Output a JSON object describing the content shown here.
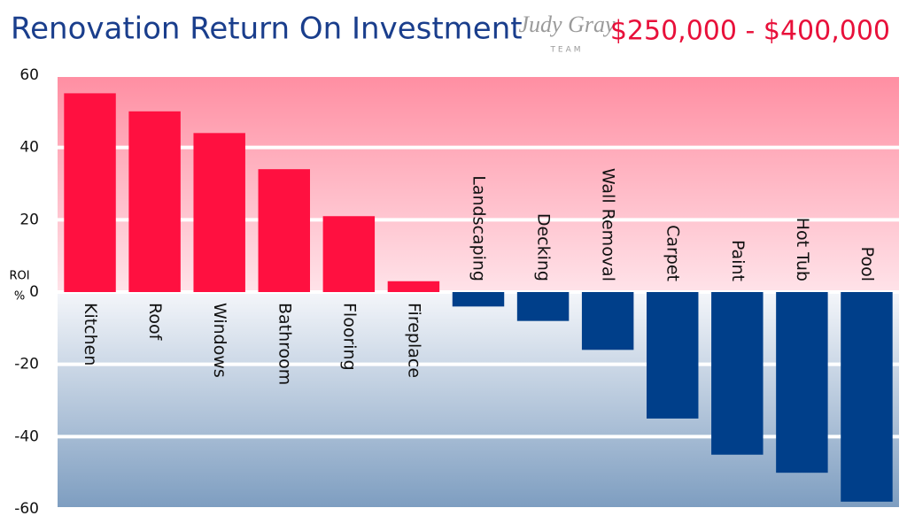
{
  "chart_data": {
    "type": "bar",
    "title": "Renovation Return On Investment",
    "subtitle": "$250,000 - $400,000",
    "logo": "Judy Gray",
    "logo_sub": "TEAM",
    "ylabel": [
      "ROI",
      "%"
    ],
    "categories": [
      "Kitchen",
      "Roof",
      "Windows",
      "Bathroom",
      "Flooring",
      "Fireplace",
      "Landscaping",
      "Decking",
      "Wall Removal",
      "Carpet",
      "Paint",
      "Hot Tub",
      "Pool"
    ],
    "values": [
      55,
      50,
      44,
      34,
      21,
      3,
      -4,
      -8,
      -16,
      -35,
      -45,
      -50,
      -58
    ],
    "positive_color": "#ff1040",
    "negative_color": "#003f8a",
    "ylim": [
      -60,
      60
    ],
    "yticks": [
      -60,
      -40,
      -20,
      0,
      20,
      40,
      60
    ],
    "grid": true
  }
}
